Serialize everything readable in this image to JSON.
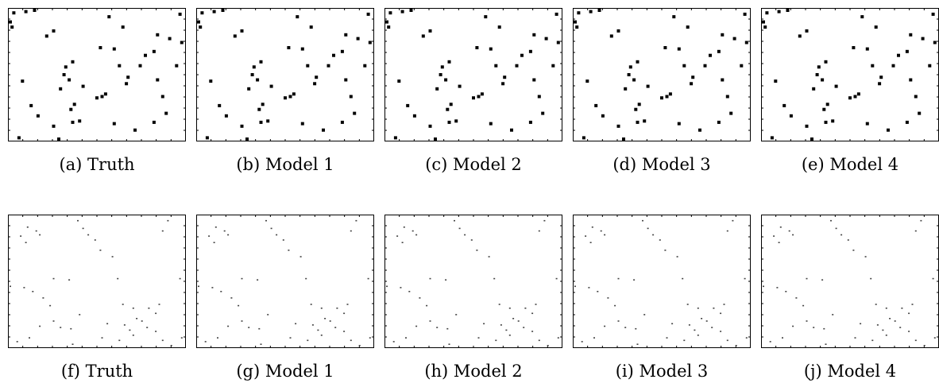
{
  "figure": {
    "panels": [
      {
        "id": "a",
        "caption": "(a) Truth",
        "kind": "square"
      },
      {
        "id": "b",
        "caption": "(b) Model 1",
        "kind": "square"
      },
      {
        "id": "c",
        "caption": "(c) Model 2",
        "kind": "square"
      },
      {
        "id": "d",
        "caption": "(d) Model 3",
        "kind": "square"
      },
      {
        "id": "e",
        "caption": "(e) Model 4",
        "kind": "square"
      },
      {
        "id": "f",
        "caption": "(f) Truth",
        "kind": "dot"
      },
      {
        "id": "g",
        "caption": "(g) Model 1",
        "kind": "dot"
      },
      {
        "id": "h",
        "caption": "(h) Model 2",
        "kind": "dot"
      },
      {
        "id": "i",
        "caption": "(i) Model 3",
        "kind": "dot"
      },
      {
        "id": "j",
        "caption": "(j) Model 4",
        "kind": "dot"
      }
    ]
  },
  "chart_data": [
    {
      "type": "scatter",
      "title": "",
      "panels": [
        "a",
        "b",
        "c",
        "d",
        "e"
      ],
      "xlim": [
        0,
        1
      ],
      "ylim": [
        0,
        1
      ],
      "grid": false,
      "points": [
        [
          0.02,
          0.98
        ],
        [
          0.09,
          0.99
        ],
        [
          0.14,
          1.0
        ],
        [
          0.0,
          0.91
        ],
        [
          0.01,
          0.87
        ],
        [
          0.57,
          0.95
        ],
        [
          0.98,
          0.97
        ],
        [
          0.25,
          0.84
        ],
        [
          0.21,
          0.8
        ],
        [
          0.65,
          0.87
        ],
        [
          0.85,
          0.81
        ],
        [
          0.92,
          0.78
        ],
        [
          0.52,
          0.71
        ],
        [
          0.99,
          0.75
        ],
        [
          0.6,
          0.7
        ],
        [
          0.83,
          0.68
        ],
        [
          0.78,
          0.65
        ],
        [
          0.36,
          0.6
        ],
        [
          0.32,
          0.56
        ],
        [
          0.63,
          0.57
        ],
        [
          0.75,
          0.57
        ],
        [
          0.96,
          0.57
        ],
        [
          0.31,
          0.5
        ],
        [
          0.34,
          0.46
        ],
        [
          0.68,
          0.48
        ],
        [
          0.85,
          0.46
        ],
        [
          0.67,
          0.43
        ],
        [
          0.07,
          0.45
        ],
        [
          0.29,
          0.39
        ],
        [
          0.42,
          0.41
        ],
        [
          0.55,
          0.35
        ],
        [
          0.5,
          0.32
        ],
        [
          0.53,
          0.33
        ],
        [
          0.88,
          0.33
        ],
        [
          0.12,
          0.26
        ],
        [
          0.37,
          0.27
        ],
        [
          0.35,
          0.23
        ],
        [
          0.16,
          0.18
        ],
        [
          0.9,
          0.2
        ],
        [
          0.36,
          0.13
        ],
        [
          0.4,
          0.14
        ],
        [
          0.25,
          0.1
        ],
        [
          0.6,
          0.12
        ],
        [
          0.72,
          0.07
        ],
        [
          0.83,
          0.13
        ],
        [
          0.05,
          0.01
        ],
        [
          0.28,
          0.0
        ]
      ]
    },
    {
      "type": "scatter",
      "title": "",
      "panels": [
        "f",
        "g",
        "h",
        "i",
        "j"
      ],
      "xlim": [
        0,
        1
      ],
      "ylim": [
        0,
        1
      ],
      "grid": false,
      "points": [
        [
          0.1,
          0.92
        ],
        [
          0.15,
          0.89
        ],
        [
          0.17,
          0.86
        ],
        [
          0.06,
          0.85
        ],
        [
          0.09,
          0.8
        ],
        [
          0.39,
          0.97
        ],
        [
          0.42,
          0.91
        ],
        [
          0.45,
          0.86
        ],
        [
          0.49,
          0.82
        ],
        [
          0.91,
          0.97
        ],
        [
          0.88,
          0.89
        ],
        [
          0.52,
          0.74
        ],
        [
          0.59,
          0.69
        ],
        [
          0.25,
          0.52
        ],
        [
          0.34,
          0.51
        ],
        [
          0.62,
          0.52
        ],
        [
          0.98,
          0.52
        ],
        [
          0.0,
          0.46
        ],
        [
          0.08,
          0.45
        ],
        [
          0.13,
          0.42
        ],
        [
          0.19,
          0.37
        ],
        [
          0.23,
          0.31
        ],
        [
          0.65,
          0.32
        ],
        [
          0.71,
          0.29
        ],
        [
          0.8,
          0.29
        ],
        [
          0.86,
          0.32
        ],
        [
          0.4,
          0.24
        ],
        [
          0.73,
          0.21
        ],
        [
          0.76,
          0.19
        ],
        [
          0.84,
          0.25
        ],
        [
          0.25,
          0.19
        ],
        [
          0.17,
          0.15
        ],
        [
          0.29,
          0.14
        ],
        [
          0.35,
          0.13
        ],
        [
          0.56,
          0.17
        ],
        [
          0.66,
          0.16
        ],
        [
          0.69,
          0.12
        ],
        [
          0.79,
          0.14
        ],
        [
          0.84,
          0.11
        ],
        [
          0.53,
          0.06
        ],
        [
          0.63,
          0.04
        ],
        [
          0.71,
          0.08
        ],
        [
          0.88,
          0.04
        ],
        [
          0.99,
          0.06
        ],
        [
          0.11,
          0.06
        ],
        [
          0.36,
          0.01
        ],
        [
          0.04,
          0.03
        ],
        [
          0.93,
          0.0
        ]
      ]
    }
  ]
}
